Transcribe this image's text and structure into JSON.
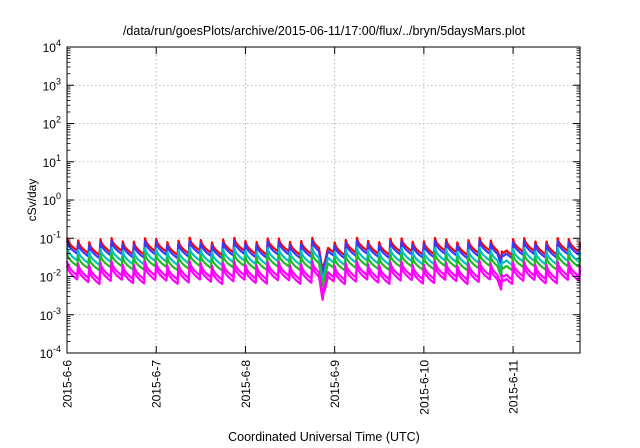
{
  "chart_data": {
    "type": "line",
    "title": "/data/run/goesPlots/archive/2015-06-11/17:00/flux/../bryn/5daysMars.plot",
    "xlabel": "Coordinated Universal Time (UTC)",
    "ylabel": "cSv/day",
    "yscale": "log",
    "ylim": [
      0.0001,
      10000
    ],
    "xlim": [
      "2015-06-06 00:00",
      "2015-06-11 18:00"
    ],
    "grid": true,
    "legend": "none",
    "x_ticks": [
      "2015-6-6",
      "2015-6-7",
      "2015-6-8",
      "2015-6-9",
      "2015-6-10",
      "2015-6-11"
    ],
    "y_ticks": [
      {
        "base": "10",
        "exp": "-4"
      },
      {
        "base": "10",
        "exp": "-3"
      },
      {
        "base": "10",
        "exp": "-2"
      },
      {
        "base": "10",
        "exp": "-1"
      },
      {
        "base": "10",
        "exp": "0"
      },
      {
        "base": "10",
        "exp": "1"
      },
      {
        "base": "10",
        "exp": "2"
      },
      {
        "base": "10",
        "exp": "3"
      },
      {
        "base": "10",
        "exp": "4"
      }
    ],
    "sawtooth_period_hours": 3,
    "series": [
      {
        "color": "#ff0000",
        "peak": 0.09,
        "trough": 0.04
      },
      {
        "color": "#3a3aff",
        "peak": 0.075,
        "trough": 0.033
      },
      {
        "color": "#00c0c0",
        "peak": 0.05,
        "trough": 0.022
      },
      {
        "color": "#22bb22",
        "peak": 0.035,
        "trough": 0.016
      },
      {
        "color": "#ff00ff",
        "peak": 0.022,
        "trough": 0.009
      },
      {
        "color": "#ff00ff",
        "peak": 0.017,
        "trough": 0.007
      }
    ],
    "dips": [
      {
        "x": "2015-06-08 21:00",
        "value": 0.0015
      },
      {
        "x": "2015-06-10 21:00",
        "value": 0.004
      }
    ]
  }
}
